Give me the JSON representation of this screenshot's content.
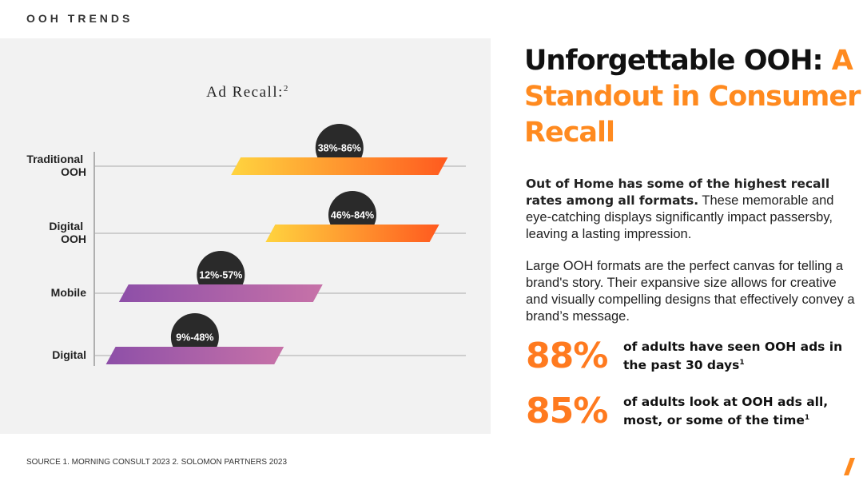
{
  "header": "OOH TRENDS",
  "headline": {
    "dark": "Unforgettable OOH:",
    "accent": "A Standout in Consumer Recall"
  },
  "paragraphs": [
    {
      "bold": "Out of Home has some of the highest recall rates among all formats.",
      "text": "These memorable and eye-catching displays significantly impact passersby, leaving a lasting impression."
    },
    {
      "text": "Large OOH formats are the perfect canvas for telling a brand's story. Their expansive size allows for creative and visually compelling designs that effectively convey a brand’s message."
    }
  ],
  "stats": [
    {
      "number": "88%",
      "text": "of adults have seen OOH ads in the past 30 days",
      "note": "1"
    },
    {
      "number": "85%",
      "text": "of adults look at OOH ads all, most, or some of the time",
      "note": "1"
    }
  ],
  "footer": "SOURCE 1. MORNING CONSULT 2023  2. SOLOMON PARTNERS 2023",
  "chart_data": {
    "type": "range_bar",
    "title": "Ad Recall:",
    "title_note": "2",
    "categories": [
      "Traditional OOH",
      "Digital OOH",
      "Mobile",
      "Digital"
    ],
    "low": [
      38,
      46,
      12,
      9
    ],
    "high": [
      86,
      84,
      57,
      48
    ],
    "value_labels": [
      "38%-86%",
      "46%-84%",
      "12%-57%",
      "9%-48%"
    ],
    "colors": [
      [
        "#ffd43f",
        "#ff5a1f"
      ],
      [
        "#ffd43f",
        "#ff5a1f"
      ],
      [
        "#8d4fa8",
        "#c772a8"
      ],
      [
        "#8d4fa8",
        "#c772a8"
      ]
    ],
    "bubble_color": "#2a2a2a",
    "grid": true
  }
}
